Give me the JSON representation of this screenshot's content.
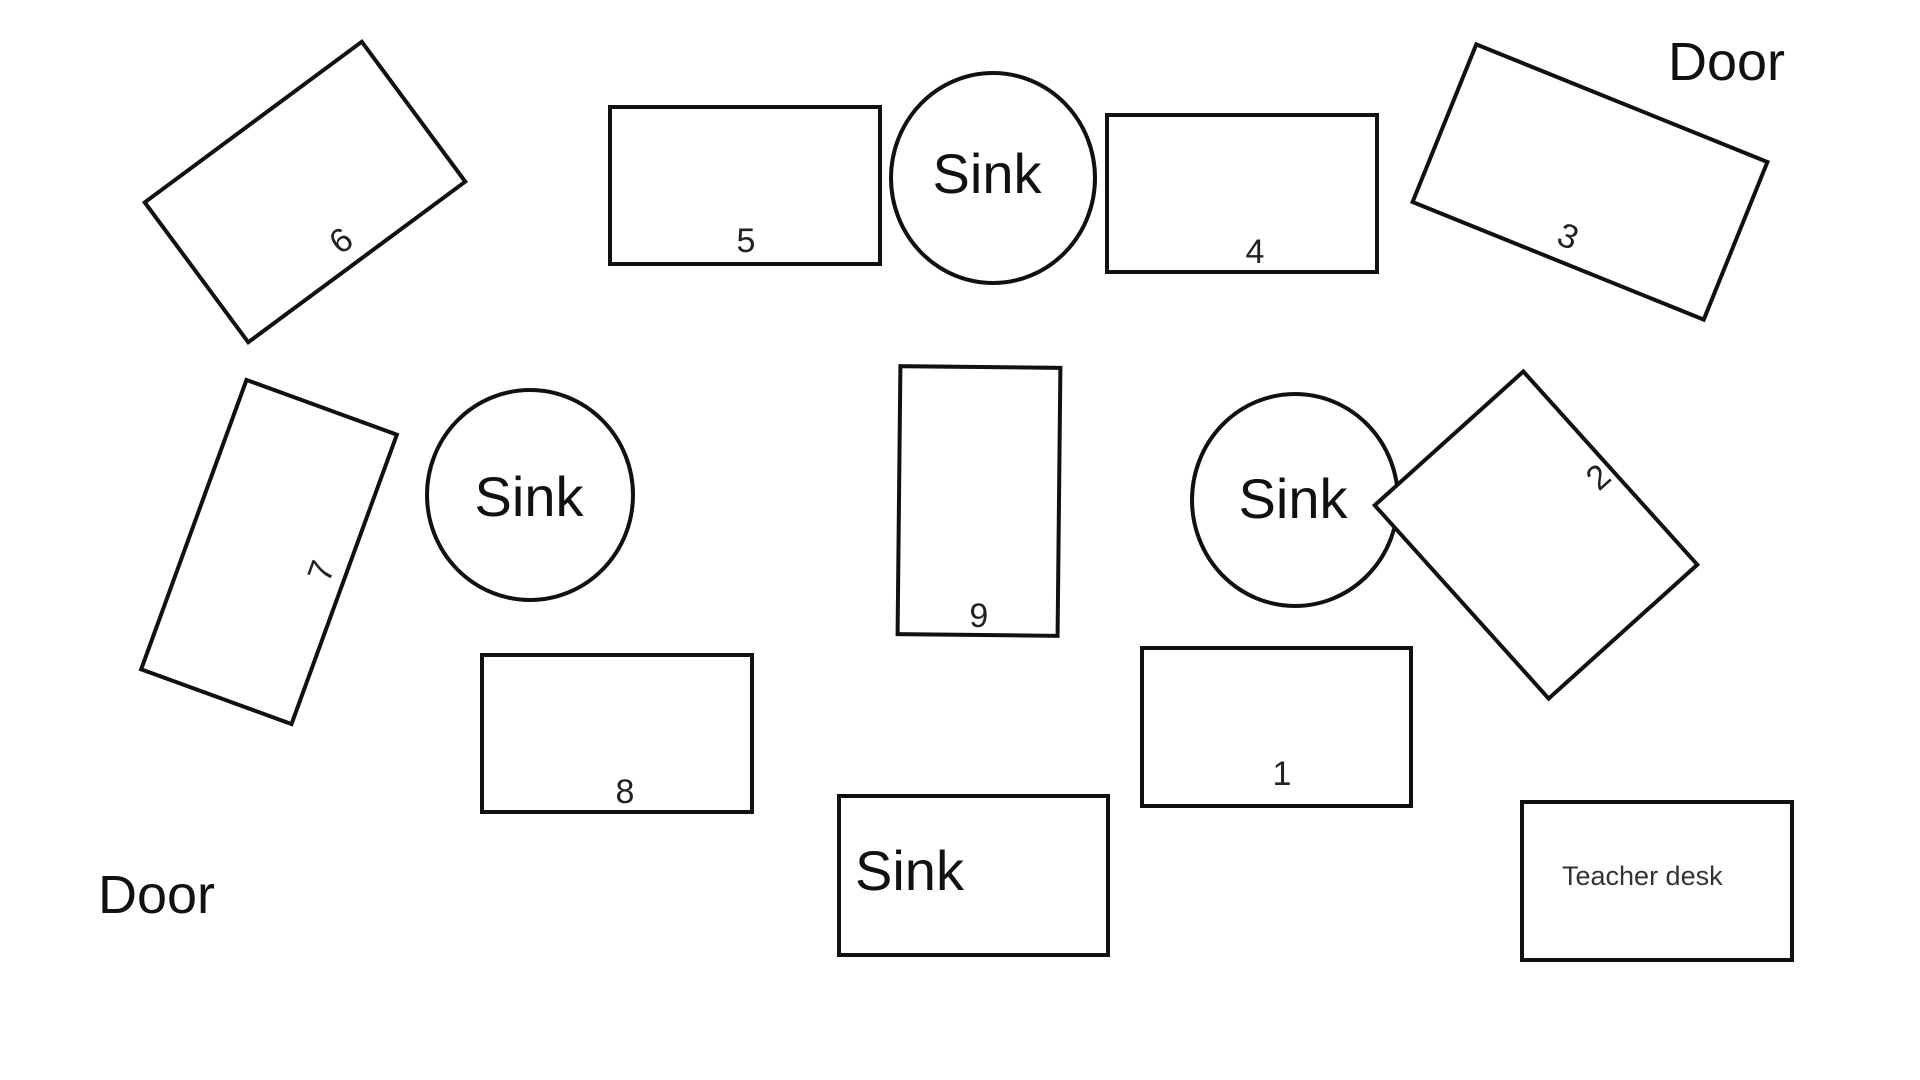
{
  "doors": {
    "top_right": "Door",
    "bottom_left": "Door"
  },
  "tables": [
    {
      "id": "table-1",
      "label": "1"
    },
    {
      "id": "table-2",
      "label": "2"
    },
    {
      "id": "table-3",
      "label": "3"
    },
    {
      "id": "table-4",
      "label": "4"
    },
    {
      "id": "table-5",
      "label": "5"
    },
    {
      "id": "table-6",
      "label": "6"
    },
    {
      "id": "table-7",
      "label": "7"
    },
    {
      "id": "table-8",
      "label": "8"
    },
    {
      "id": "table-9",
      "label": "9"
    }
  ],
  "sinks": [
    {
      "id": "sink-top",
      "label": "Sink",
      "shape": "circle"
    },
    {
      "id": "sink-left",
      "label": "Sink",
      "shape": "circle"
    },
    {
      "id": "sink-right",
      "label": "Sink",
      "shape": "circle"
    },
    {
      "id": "sink-bottom",
      "label": "Sink",
      "shape": "rectangle"
    }
  ],
  "teacher_desk": {
    "label": "Teacher desk"
  },
  "colors": {
    "stroke": "#111111",
    "background": "#ffffff"
  }
}
